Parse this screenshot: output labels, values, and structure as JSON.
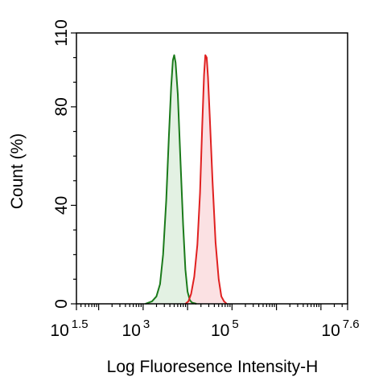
{
  "chart_data": {
    "type": "area",
    "xlabel": "Log Fluoresence Intensity-H",
    "ylabel": "Count  (%)",
    "xscale": "log",
    "xlim_log10": [
      1.5,
      7.6
    ],
    "ylim": [
      0,
      110
    ],
    "x_tick_labels": [
      {
        "base": "10",
        "exp": "1.5",
        "log10": 1.5
      },
      {
        "base": "10",
        "exp": "3",
        "log10": 3
      },
      {
        "base": "10",
        "exp": "5",
        "log10": 5
      },
      {
        "base": "10",
        "exp": "7.6",
        "log10": 7.6
      }
    ],
    "y_ticks": [
      {
        "label": "0",
        "value": 0
      },
      {
        "label": "40",
        "value": 40
      },
      {
        "label": "80",
        "value": 80
      },
      {
        "label": "110",
        "value": 110
      }
    ],
    "grid": false,
    "legend": "none",
    "series": [
      {
        "color": "#1a7a1a",
        "fill": "#e3f1e3",
        "points_log10": [
          [
            3.05,
            0
          ],
          [
            3.2,
            1
          ],
          [
            3.3,
            3
          ],
          [
            3.38,
            8
          ],
          [
            3.45,
            20
          ],
          [
            3.52,
            42
          ],
          [
            3.58,
            68
          ],
          [
            3.63,
            88
          ],
          [
            3.67,
            99
          ],
          [
            3.7,
            101
          ],
          [
            3.73,
            98
          ],
          [
            3.78,
            85
          ],
          [
            3.84,
            58
          ],
          [
            3.9,
            32
          ],
          [
            3.95,
            14
          ],
          [
            4.0,
            5
          ],
          [
            4.05,
            1.5
          ],
          [
            4.1,
            0.5
          ],
          [
            4.2,
            0
          ]
        ]
      },
      {
        "color": "#e02020",
        "fill": "#fbe1e3",
        "points_log10": [
          [
            3.95,
            0
          ],
          [
            4.02,
            1
          ],
          [
            4.08,
            4
          ],
          [
            4.15,
            11
          ],
          [
            4.22,
            24
          ],
          [
            4.28,
            45
          ],
          [
            4.33,
            72
          ],
          [
            4.37,
            93
          ],
          [
            4.4,
            101
          ],
          [
            4.43,
            100
          ],
          [
            4.46,
            92
          ],
          [
            4.5,
            76
          ],
          [
            4.56,
            50
          ],
          [
            4.63,
            25
          ],
          [
            4.7,
            10
          ],
          [
            4.76,
            3
          ],
          [
            4.82,
            1
          ],
          [
            4.88,
            0
          ]
        ]
      }
    ]
  }
}
